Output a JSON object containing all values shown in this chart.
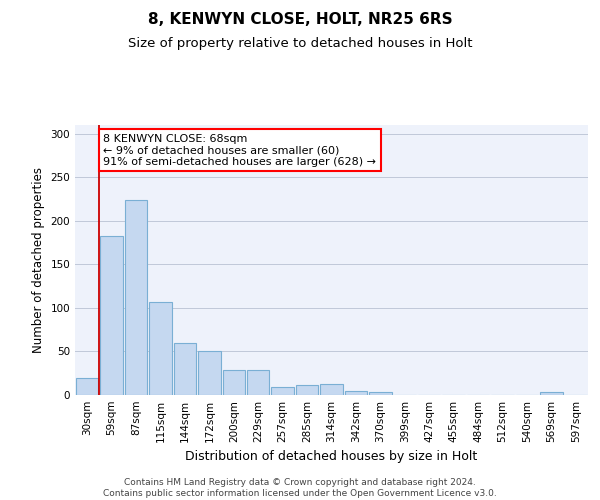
{
  "title1": "8, KENWYN CLOSE, HOLT, NR25 6RS",
  "title2": "Size of property relative to detached houses in Holt",
  "xlabel": "Distribution of detached houses by size in Holt",
  "ylabel": "Number of detached properties",
  "categories": [
    "30sqm",
    "59sqm",
    "87sqm",
    "115sqm",
    "144sqm",
    "172sqm",
    "200sqm",
    "229sqm",
    "257sqm",
    "285sqm",
    "314sqm",
    "342sqm",
    "370sqm",
    "399sqm",
    "427sqm",
    "455sqm",
    "484sqm",
    "512sqm",
    "540sqm",
    "569sqm",
    "597sqm"
  ],
  "values": [
    20,
    183,
    224,
    107,
    60,
    50,
    29,
    29,
    9,
    12,
    13,
    5,
    3,
    0,
    0,
    0,
    0,
    0,
    0,
    3,
    0
  ],
  "bar_color": "#c5d8f0",
  "bar_edge_color": "#7aafd4",
  "vline_color": "#cc0000",
  "vline_x_index": 1,
  "ylim": [
    0,
    310
  ],
  "yticks": [
    0,
    50,
    100,
    150,
    200,
    250,
    300
  ],
  "annotation_text": "8 KENWYN CLOSE: 68sqm\n← 9% of detached houses are smaller (60)\n91% of semi-detached houses are larger (628) →",
  "footer": "Contains HM Land Registry data © Crown copyright and database right 2024.\nContains public sector information licensed under the Open Government Licence v3.0.",
  "background_color": "#eef2fb",
  "grid_color": "#c0c8d8",
  "title1_fontsize": 11,
  "title2_fontsize": 9.5,
  "xlabel_fontsize": 9,
  "ylabel_fontsize": 8.5,
  "tick_fontsize": 7.5,
  "footer_fontsize": 6.5,
  "ann_fontsize": 8
}
